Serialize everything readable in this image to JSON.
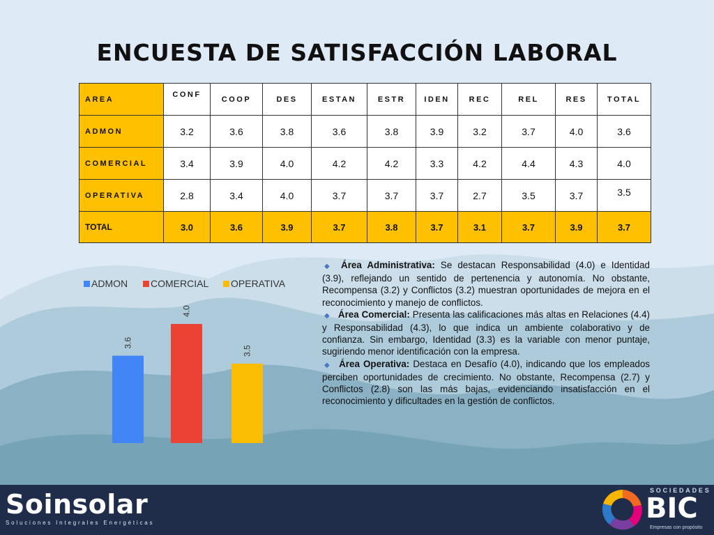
{
  "title": "ENCUESTA DE SATISFACCIÓN LABORAL",
  "table": {
    "header": [
      "AREA",
      "CONF",
      "COOP",
      "DES",
      "ESTAN",
      "ESTR",
      "IDEN",
      "REC",
      "REL",
      "RES",
      "TOTAL"
    ],
    "rows": [
      {
        "area": "ADMON",
        "values": [
          "3.2",
          "3.6",
          "3.8",
          "3.6",
          "3.8",
          "3.9",
          "3.2",
          "3.7",
          "4.0",
          "3.6"
        ]
      },
      {
        "area": "COMERCIAL",
        "values": [
          "3.4",
          "3.9",
          "4.0",
          "4.2",
          "4.2",
          "3.3",
          "4.2",
          "4.4",
          "4.3",
          "4.0"
        ]
      },
      {
        "area": "OPERATIVA",
        "values": [
          "2.8",
          "3.4",
          "4.0",
          "3.7",
          "3.7",
          "3.7",
          "2.7",
          "3.5",
          "3.7",
          "3.5"
        ]
      }
    ],
    "total": {
      "area": "TOTAL",
      "values": [
        "3.0",
        "3.6",
        "3.9",
        "3.7",
        "3.8",
        "3.7",
        "3.1",
        "3.7",
        "3.9",
        "3.7"
      ]
    }
  },
  "chart_data": {
    "type": "bar",
    "series": [
      {
        "name": "ADMON",
        "values": [
          3.6
        ],
        "color": "#4285f4"
      },
      {
        "name": "COMERCIAL",
        "values": [
          4.0
        ],
        "color": "#ea4335"
      },
      {
        "name": "OPERATIVA",
        "values": [
          3.5
        ],
        "color": "#fbbc04"
      }
    ],
    "data_labels": [
      "3.6",
      "4.0",
      "3.5"
    ],
    "legend_position": "top",
    "grid": false
  },
  "notes": [
    {
      "lead": "Área Administrativa:",
      "text": " Se destacan Responsabilidad (4.0) e Identidad (3.9), reflejando un sentido de pertenencia y autonomía. No obstante, Recompensa (3.2) y Conflictos (3.2) muestran oportunidades de mejora en el reconocimiento y manejo de conflictos."
    },
    {
      "lead": "Área Comercial:",
      "text": " Presenta las calificaciones más altas en Relaciones (4.4) y Responsabilidad (4.3), lo que indica un ambiente colaborativo y de confianza. Sin embargo, Identidad (3.3) es la variable con menor puntaje, sugiriendo menor identificación con la empresa."
    },
    {
      "lead": "Área Operativa:",
      "text": " Destaca en Desafío (4.0), indicando que los empleados perciben oportunidades de crecimiento. No obstante, Recompensa (2.7) y Conflictos (2.8) son las más bajas, evidenciando insatisfacción en el reconocimiento y dificultades en la gestión de conflictos."
    }
  ],
  "footer": {
    "left_brand": "Soinsolar",
    "left_tagline": "Soluciones Integrales Energéticas",
    "right_top": "SOCIEDADES",
    "right_brand": "BIC",
    "right_tagline": "Empresas con propósito"
  },
  "colors": {
    "accent": "#ffc000",
    "footer": "#1f2d4a",
    "background": "#deeaf5"
  }
}
